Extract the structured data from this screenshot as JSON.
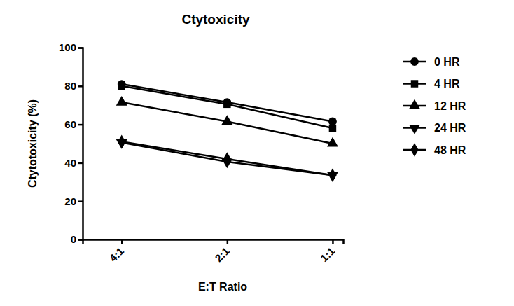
{
  "chart_data": {
    "type": "line",
    "title": "Ctytoxicity",
    "x_label": "E:T Ratio",
    "y_label": "Ctytotoxicity (%)",
    "categories": [
      "4:1",
      "2:1",
      "1:1"
    ],
    "series": [
      {
        "name": "0 HR",
        "color": "#000000",
        "marker": "circle",
        "values": [
          81,
          71.5,
          61.5
        ]
      },
      {
        "name": "4 HR",
        "color": "#000000",
        "marker": "square",
        "values": [
          80,
          70.5,
          58
        ]
      },
      {
        "name": "12 HR",
        "color": "#000000",
        "marker": "triangle",
        "values": [
          71.5,
          61.5,
          50
        ]
      },
      {
        "name": "24 HR",
        "color": "#000000",
        "marker": "triangle-down",
        "values": [
          50.5,
          40.5,
          33.5
        ]
      },
      {
        "name": "48 HR",
        "color": "#000000",
        "marker": "diamond",
        "values": [
          51,
          42,
          33.5
        ]
      }
    ],
    "ylim": [
      0,
      100
    ],
    "yticks": [
      0,
      20,
      40,
      60,
      80,
      100
    ],
    "grid": false,
    "legend": "right"
  }
}
